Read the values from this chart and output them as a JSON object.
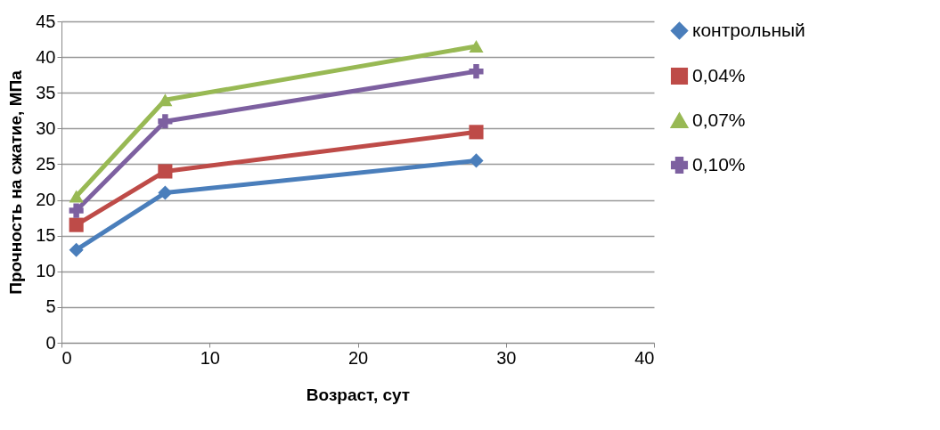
{
  "chart_data": {
    "type": "line",
    "xlabel": "Возраст, сут",
    "ylabel": "Прочность  на сжатие, МПа",
    "xlim": [
      0,
      40
    ],
    "xticks": [
      0,
      10,
      20,
      30,
      40
    ],
    "ylim": [
      0,
      45
    ],
    "yticks": [
      0,
      5,
      10,
      15,
      20,
      25,
      30,
      35,
      40,
      45
    ],
    "grid": "y",
    "legend": "right",
    "series": [
      {
        "name": "контрольный",
        "color": "#4a7ebb",
        "marker": "diamond",
        "x": [
          1,
          7,
          28
        ],
        "values": [
          13,
          21,
          25.5
        ]
      },
      {
        "name": "0,04%",
        "color": "#be4b48",
        "marker": "square",
        "x": [
          1,
          7,
          28
        ],
        "values": [
          16.5,
          24,
          29.5
        ]
      },
      {
        "name": "0,07%",
        "color": "#98b954",
        "marker": "triangle",
        "x": [
          1,
          7,
          28
        ],
        "values": [
          20.5,
          34,
          41.5
        ]
      },
      {
        "name": "0,10%",
        "color": "#7d60a0",
        "marker": "cross",
        "x": [
          1,
          7,
          28
        ],
        "values": [
          18.5,
          31,
          38
        ]
      }
    ]
  }
}
